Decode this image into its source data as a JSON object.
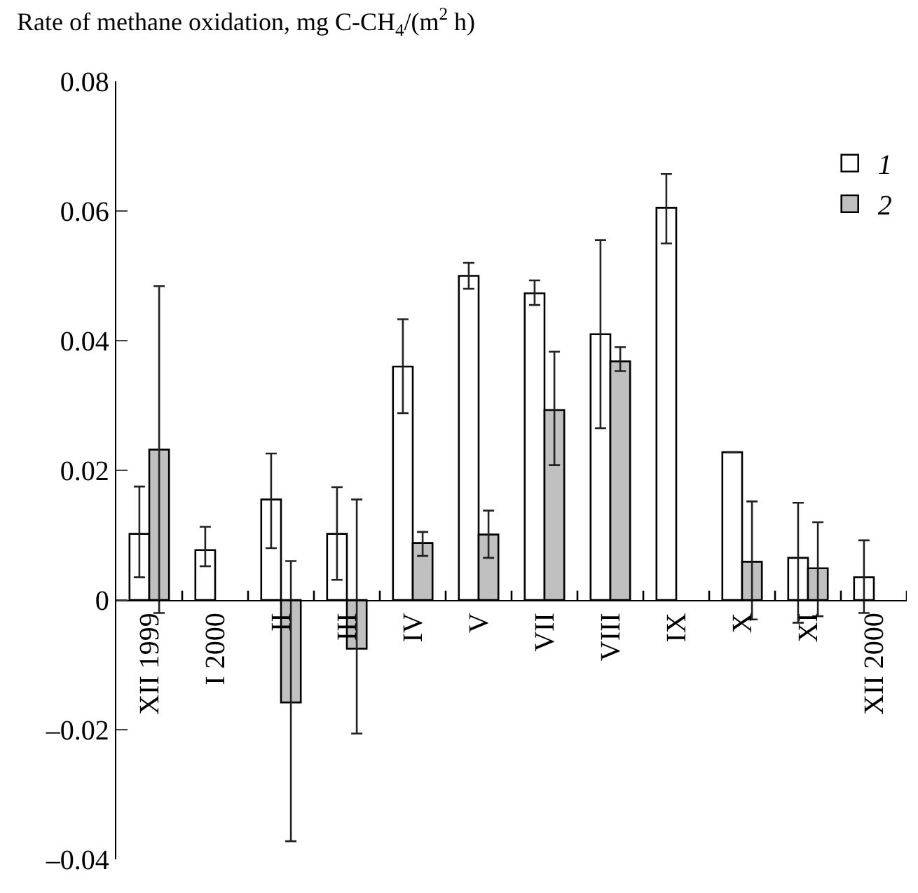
{
  "chart_data": {
    "type": "bar",
    "ylabel": "Rate of methane oxidation, mg C-CH$_{4}$/(m$^{2}$ h)",
    "categories": [
      "XII 1999",
      "I 2000",
      "II",
      "III",
      "IV",
      "V",
      "VII",
      "VIII",
      "IX",
      "X",
      "XI",
      "XII 2000"
    ],
    "series": [
      {
        "name": "1",
        "color": "#ffffff",
        "values": [
          0.0102,
          0.0077,
          0.0155,
          0.0102,
          0.036,
          0.05,
          0.0473,
          0.041,
          0.0605,
          0.0228,
          0.0065,
          0.0035
        ],
        "errors": [
          [
            0.0035,
            0.0175
          ],
          [
            0.0052,
            0.0113
          ],
          [
            0.008,
            0.0226
          ],
          [
            0.0031,
            0.0174
          ],
          [
            0.0288,
            0.0433
          ],
          [
            0.048,
            0.052
          ],
          [
            0.0455,
            0.0493
          ],
          [
            0.0265,
            0.0555
          ],
          [
            0.055,
            0.0657
          ],
          null,
          [
            -0.0035,
            0.015
          ],
          [
            -0.002,
            0.0092
          ]
        ]
      },
      {
        "name": "2",
        "color": "#c0c0c0",
        "values": [
          0.0232,
          null,
          -0.0158,
          -0.0075,
          0.0088,
          0.0101,
          0.0293,
          0.0368,
          null,
          0.0059,
          0.0049,
          null
        ],
        "errors": [
          [
            -0.002,
            0.0484
          ],
          null,
          [
            -0.0372,
            0.006
          ],
          [
            -0.0206,
            0.0155
          ],
          [
            0.0068,
            0.0105
          ],
          [
            0.0065,
            0.0138
          ],
          [
            0.0208,
            0.0383
          ],
          [
            0.0353,
            0.039
          ],
          null,
          [
            -0.003,
            0.0152
          ],
          [
            -0.0025,
            0.012
          ],
          null
        ]
      }
    ],
    "ylim": [
      -0.04,
      0.08
    ],
    "yticks": [
      {
        "value": -0.04,
        "label": "–0.04"
      },
      {
        "value": -0.02,
        "label": "–0.02"
      },
      0,
      0.02,
      0.04,
      0.06,
      0.08
    ],
    "grid": false,
    "legend": "top right"
  }
}
